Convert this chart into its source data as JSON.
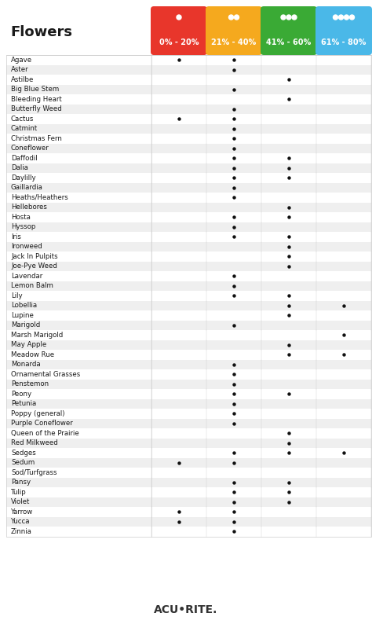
{
  "title": "Flowers",
  "columns": [
    "0% - 20%",
    "21% - 40%",
    "41% - 60%",
    "61% - 80%"
  ],
  "col_colors": [
    "#e8362b",
    "#f5a91e",
    "#3aaa35",
    "#4ab8e8"
  ],
  "flowers": [
    "Agave",
    "Aster",
    "Astilbe",
    "Big Blue Stem",
    "Bleeding Heart",
    "Butterfly Weed",
    "Cactus",
    "Catmint",
    "Christmas Fern",
    "Coneflower",
    "Daffodil",
    "Dalia",
    "Daylilly",
    "Gaillardia",
    "Heaths/Heathers",
    "Hellebores",
    "Hosta",
    "Hyssop",
    "Iris",
    "Ironweed",
    "Jack In Pulpits",
    "Joe-Pye Weed",
    "Lavendar",
    "Lemon Balm",
    "Lily",
    "Lobellia",
    "Lupine",
    "Marigold",
    "Marsh Marigold",
    "May Apple",
    "Meadow Rue",
    "Monarda",
    "Ornamental Grasses",
    "Penstemon",
    "Peony",
    "Petunia",
    "Poppy (general)",
    "Purple Coneflower",
    "Queen of the Prairie",
    "Red Milkweed",
    "Sedges",
    "Sedum",
    "Sod/Turfgrass",
    "Pansy",
    "Tulip",
    "Violet",
    "Yarrow",
    "Yucca",
    "Zinnia"
  ],
  "dots": {
    "Agave": [
      1,
      1,
      0,
      0
    ],
    "Aster": [
      0,
      1,
      0,
      0
    ],
    "Astilbe": [
      0,
      0,
      1,
      0
    ],
    "Big Blue Stem": [
      0,
      1,
      0,
      0
    ],
    "Bleeding Heart": [
      0,
      0,
      1,
      0
    ],
    "Butterfly Weed": [
      0,
      1,
      0,
      0
    ],
    "Cactus": [
      1,
      1,
      0,
      0
    ],
    "Catmint": [
      0,
      1,
      0,
      0
    ],
    "Christmas Fern": [
      0,
      1,
      0,
      0
    ],
    "Coneflower": [
      0,
      1,
      0,
      0
    ],
    "Daffodil": [
      0,
      1,
      1,
      0
    ],
    "Dalia": [
      0,
      1,
      1,
      0
    ],
    "Daylilly": [
      0,
      1,
      1,
      0
    ],
    "Gaillardia": [
      0,
      1,
      0,
      0
    ],
    "Heaths/Heathers": [
      0,
      1,
      0,
      0
    ],
    "Hellebores": [
      0,
      0,
      1,
      0
    ],
    "Hosta": [
      0,
      1,
      1,
      0
    ],
    "Hyssop": [
      0,
      1,
      0,
      0
    ],
    "Iris": [
      0,
      1,
      1,
      0
    ],
    "Ironweed": [
      0,
      0,
      1,
      0
    ],
    "Jack In Pulpits": [
      0,
      0,
      1,
      0
    ],
    "Joe-Pye Weed": [
      0,
      0,
      1,
      0
    ],
    "Lavendar": [
      0,
      1,
      0,
      0
    ],
    "Lemon Balm": [
      0,
      1,
      0,
      0
    ],
    "Lily": [
      0,
      1,
      1,
      0
    ],
    "Lobellia": [
      0,
      0,
      1,
      1
    ],
    "Lupine": [
      0,
      0,
      1,
      0
    ],
    "Marigold": [
      0,
      1,
      0,
      0
    ],
    "Marsh Marigold": [
      0,
      0,
      0,
      1
    ],
    "May Apple": [
      0,
      0,
      1,
      0
    ],
    "Meadow Rue": [
      0,
      0,
      1,
      1
    ],
    "Monarda": [
      0,
      1,
      0,
      0
    ],
    "Ornamental Grasses": [
      0,
      1,
      0,
      0
    ],
    "Penstemon": [
      0,
      1,
      0,
      0
    ],
    "Peony": [
      0,
      1,
      1,
      0
    ],
    "Petunia": [
      0,
      1,
      0,
      0
    ],
    "Poppy (general)": [
      0,
      1,
      0,
      0
    ],
    "Purple Coneflower": [
      0,
      1,
      0,
      0
    ],
    "Queen of the Prairie": [
      0,
      0,
      1,
      0
    ],
    "Red Milkweed": [
      0,
      0,
      1,
      0
    ],
    "Sedges": [
      0,
      1,
      1,
      1
    ],
    "Sedum": [
      1,
      1,
      0,
      0
    ],
    "Sod/Turfgrass": [
      0,
      0,
      0,
      0
    ],
    "Pansy": [
      0,
      1,
      1,
      0
    ],
    "Tulip": [
      0,
      1,
      1,
      0
    ],
    "Violet": [
      0,
      1,
      1,
      0
    ],
    "Yarrow": [
      1,
      1,
      0,
      0
    ],
    "Yucca": [
      1,
      1,
      0,
      0
    ],
    "Zinnia": [
      0,
      1,
      0,
      0
    ]
  },
  "bg_color": "#ffffff",
  "row_alt_color": "#efefef",
  "row_white_color": "#ffffff",
  "dot_color": "#111111",
  "footer_text": "ACU•RITE."
}
